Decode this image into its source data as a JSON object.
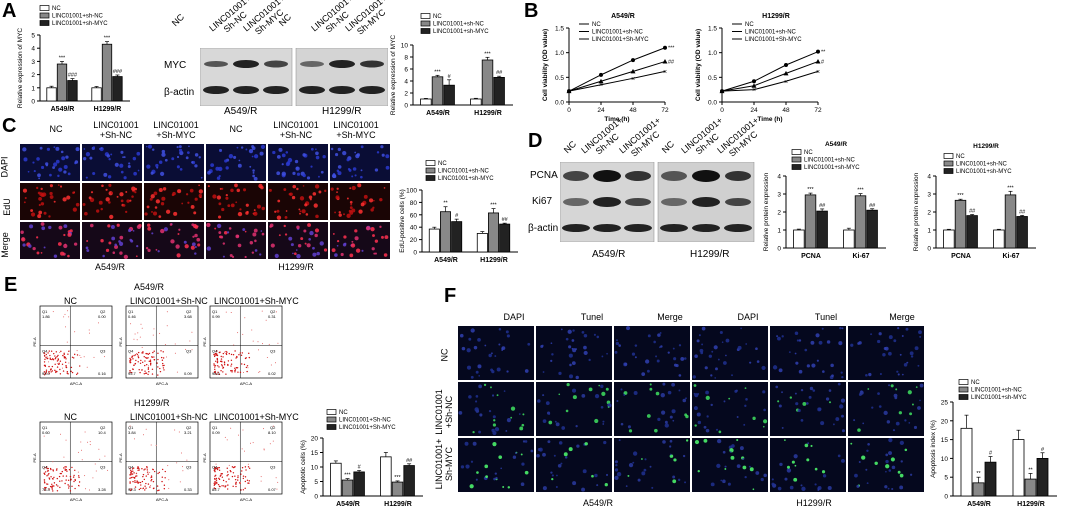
{
  "panels": {
    "A": "A",
    "B": "B",
    "C": "C",
    "D": "D",
    "E": "E",
    "F": "F"
  },
  "legend": {
    "nc": "NC",
    "sh_nc_lower": "LINC01001+sh-NC",
    "sh_myc_upper": "LINC01001+sh-MYC",
    "sh_nc_cap": "LINC01001+Sh-NC",
    "sh_myc_cap": "LINC01001+Sh-MYC",
    "sh_myc_lower": "LINC01001+sh-MYC"
  },
  "cells": {
    "a549": "A549/R",
    "h1299": "H1299/R"
  },
  "panelA": {
    "mrna_ylabel": "Relative expression of MYC",
    "prot_ylabel": "Relative expression of MYC",
    "blot_labels": {
      "myc": "MYC",
      "actin": "β-actin"
    },
    "lane_labels": [
      "NC",
      "LINC01001+ Sh-NC",
      "LINC01001+ Sh-MYC",
      "NC",
      "LINC01001+ Sh-NC",
      "LINC01001+ Sh-MYC"
    ]
  },
  "panelB": {
    "ylabel": "Cell viability (OD value)",
    "xlabel": "Time (h)"
  },
  "panelC": {
    "rows": [
      "DAPI",
      "EdU",
      "Merge"
    ],
    "cols": [
      "NC",
      "LINC01001 +Sh-NC",
      "LINC01001 +Sh-MYC",
      "NC",
      "LINC01001 +Sh-NC",
      "LINC01001 +Sh-MYC"
    ],
    "ylabel": "EdU-positive cells (%)"
  },
  "panelD": {
    "blot_labels": [
      "PCNA",
      "Ki67",
      "β-actin"
    ],
    "lane_labels": [
      "NC",
      "LINC01001+ Sh-NC",
      "LINC01001+ Sh-MYC",
      "NC",
      "LINC01001+ Sh-NC",
      "LINC01001+ Sh-MYC"
    ],
    "ylabel": "Relative protein expression"
  },
  "panelE": {
    "cols": [
      "NC",
      "LINC01001+Sh-NC",
      "LINC01001+Sh-MYC"
    ],
    "ylabel": "Apoptotic cells (%)",
    "flow": [
      {
        "q1": "1.86",
        "q2": "0.00",
        "q4": "93.0",
        "q3": "0.16"
      },
      {
        "q1": "0.46",
        "q2": "3.68",
        "q4": "95.7",
        "q3": "0.09"
      },
      {
        "q1": "0.99",
        "q2": "0.31",
        "q4": "98.6",
        "q3": "0.02"
      },
      {
        "q1": "0.60",
        "q2": "10.4",
        "q4": "78.3",
        "q3": "3.28"
      },
      {
        "q1": "3.84",
        "q2": "3.21",
        "q4": "91.3",
        "q3": "0.33"
      },
      {
        "q1": "0.09",
        "q2": "8.10",
        "q4": "85.7",
        "q3": "0.07"
      }
    ],
    "flow_axes": {
      "x": "APC-A",
      "y": "PE-A"
    }
  },
  "panelF": {
    "cols": [
      "DAPI",
      "Tunel",
      "Merge",
      "DAPI",
      "Tunel",
      "Merge"
    ],
    "rows": [
      "NC",
      "LINC01001 +Sh-NC",
      "LINC01001+ Sh-MYC"
    ],
    "ylabel": "Apoptosis index (%)"
  },
  "colors": {
    "nc": "#ffffff",
    "sh_nc": "#888888",
    "sh_myc": "#222222",
    "dapi": "#1a2a8a",
    "edu": "#c21a1a",
    "tunel": "#0e2a0e"
  },
  "chart_data": [
    {
      "id": "A-mrna",
      "type": "bar",
      "ylabel": "Relative expression of MYC",
      "categories": [
        "A549/R",
        "H1299/R"
      ],
      "ylim": [
        0,
        5
      ],
      "yticks": [
        "0",
        "1",
        "2",
        "3",
        "4",
        "5"
      ],
      "series": [
        {
          "name": "NC",
          "values": [
            1.0,
            1.0
          ],
          "err": [
            0.12,
            0.1
          ],
          "sig": [
            "",
            ""
          ]
        },
        {
          "name": "LINC01001+sh-NC",
          "values": [
            2.8,
            4.3
          ],
          "err": [
            0.2,
            0.2
          ],
          "sig": [
            "***",
            "***"
          ]
        },
        {
          "name": "LINC01001+sh-MYC",
          "values": [
            1.55,
            1.85
          ],
          "err": [
            0.15,
            0.12
          ],
          "sig": [
            "###",
            "###"
          ]
        }
      ]
    },
    {
      "id": "A-prot",
      "type": "bar",
      "ylabel": "Relative expression of MYC",
      "categories": [
        "A549/R",
        "H1299/R"
      ],
      "ylim": [
        0,
        10
      ],
      "yticks": [
        "0",
        "2",
        "4",
        "6",
        "8",
        "10"
      ],
      "series": [
        {
          "name": "NC",
          "values": [
            1.0,
            1.0
          ],
          "err": [
            0.1,
            0.12
          ],
          "sig": [
            "",
            ""
          ]
        },
        {
          "name": "LINC01001+sh-NC",
          "values": [
            4.7,
            7.5
          ],
          "err": [
            0.25,
            0.45
          ],
          "sig": [
            "***",
            "***"
          ]
        },
        {
          "name": "LINC01001+sh-MYC",
          "values": [
            3.3,
            4.6
          ],
          "err": [
            0.9,
            0.2
          ],
          "sig": [
            "#",
            "##"
          ]
        }
      ]
    },
    {
      "id": "B-a549",
      "type": "line",
      "title": "A549/R",
      "ylabel": "Cell viability (OD value)",
      "xlabel": "Time (h)",
      "x": [
        0,
        24,
        48,
        72
      ],
      "ylim": [
        0,
        1.5
      ],
      "xticks": [
        "0",
        "24",
        "48",
        "72"
      ],
      "yticks": [
        "0.0",
        "0.5",
        "1.0",
        "1.5"
      ],
      "series": [
        {
          "name": "NC",
          "values": [
            0.22,
            0.35,
            0.48,
            0.62
          ],
          "sig": ""
        },
        {
          "name": "LINC01001+sh-NC",
          "values": [
            0.22,
            0.55,
            0.85,
            1.1
          ],
          "sig": "***"
        },
        {
          "name": "LINC01001+Sh-MYC",
          "values": [
            0.22,
            0.42,
            0.62,
            0.82
          ],
          "sig": "##"
        }
      ]
    },
    {
      "id": "B-h1299",
      "type": "line",
      "title": "H1299/R",
      "ylabel": "Cell viability (OD value)",
      "xlabel": "Time (h)",
      "x": [
        0,
        24,
        48,
        72
      ],
      "ylim": [
        0,
        1.5
      ],
      "xticks": [
        "0",
        "24",
        "48",
        "72"
      ],
      "yticks": [
        "0.0",
        "0.5",
        "1.0",
        "1.5"
      ],
      "series": [
        {
          "name": "NC",
          "values": [
            0.22,
            0.25,
            0.42,
            0.62
          ],
          "sig": ""
        },
        {
          "name": "LINC01001+sh-NC",
          "values": [
            0.22,
            0.42,
            0.75,
            1.02
          ],
          "sig": "**"
        },
        {
          "name": "LINC01001+Sh-MYC",
          "values": [
            0.22,
            0.33,
            0.58,
            0.82
          ],
          "sig": "#"
        }
      ]
    },
    {
      "id": "C",
      "type": "bar",
      "ylabel": "EdU-positive cells (%)",
      "categories": [
        "A549/R",
        "H1299/R"
      ],
      "ylim": [
        0,
        100
      ],
      "yticks": [
        "0",
        "20",
        "40",
        "60",
        "80",
        "100"
      ],
      "series": [
        {
          "name": "NC",
          "values": [
            37,
            30
          ],
          "err": [
            3,
            3
          ],
          "sig": [
            "",
            ""
          ]
        },
        {
          "name": "LINC01001+sh-NC",
          "values": [
            65,
            63
          ],
          "err": [
            8,
            7
          ],
          "sig": [
            "**",
            "***"
          ]
        },
        {
          "name": "LINC01001+sh-MYC",
          "values": [
            49,
            45
          ],
          "err": [
            4,
            1.5
          ],
          "sig": [
            "#",
            "##"
          ]
        }
      ]
    },
    {
      "id": "D-a549",
      "type": "bar",
      "title": "A549/R",
      "ylabel": "Relative protein expression",
      "categories": [
        "PCNA",
        "Ki-67"
      ],
      "ylim": [
        0,
        4
      ],
      "yticks": [
        "0",
        "1",
        "2",
        "3",
        "4"
      ],
      "series": [
        {
          "name": "NC",
          "values": [
            1.0,
            1.0
          ],
          "err": [
            0.05,
            0.1
          ],
          "sig": [
            "",
            ""
          ]
        },
        {
          "name": "LINC01001+sh-NC",
          "values": [
            2.95,
            2.9
          ],
          "err": [
            0.1,
            0.12
          ],
          "sig": [
            "***",
            "***"
          ]
        },
        {
          "name": "LINC01001+sh-MYC",
          "values": [
            2.05,
            2.1
          ],
          "err": [
            0.12,
            0.08
          ],
          "sig": [
            "##",
            "##"
          ]
        }
      ]
    },
    {
      "id": "D-h1299",
      "type": "bar",
      "title": "H1299/R",
      "ylabel": "Relative protein expression",
      "categories": [
        "PCNA",
        "Ki-67"
      ],
      "ylim": [
        0,
        4
      ],
      "yticks": [
        "0",
        "1",
        "2",
        "3",
        "4"
      ],
      "series": [
        {
          "name": "NC",
          "values": [
            1.0,
            1.0
          ],
          "err": [
            0.04,
            0.04
          ],
          "sig": [
            "",
            ""
          ]
        },
        {
          "name": "LINC01001+sh-NC",
          "values": [
            2.65,
            2.95
          ],
          "err": [
            0.06,
            0.2
          ],
          "sig": [
            "***",
            "***"
          ]
        },
        {
          "name": "LINC01001+sh-MYC",
          "values": [
            1.8,
            1.75
          ],
          "err": [
            0.06,
            0.06
          ],
          "sig": [
            "##",
            "##"
          ]
        }
      ]
    },
    {
      "id": "E",
      "type": "bar",
      "ylabel": "Apoptotic cells (%)",
      "categories": [
        "A549/R",
        "H1299/R"
      ],
      "ylim": [
        0,
        20
      ],
      "yticks": [
        "0",
        "5",
        "10",
        "15",
        "20"
      ],
      "series": [
        {
          "name": "NC",
          "values": [
            11.3,
            13.5
          ],
          "err": [
            0.8,
            1.5
          ],
          "sig": [
            "",
            ""
          ]
        },
        {
          "name": "LINC01001+Sh-NC",
          "values": [
            5.5,
            4.8
          ],
          "err": [
            0.5,
            0.4
          ],
          "sig": [
            "***",
            "***"
          ]
        },
        {
          "name": "LINC01001+Sh-MYC",
          "values": [
            8.3,
            10.5
          ],
          "err": [
            0.5,
            0.6
          ],
          "sig": [
            "#",
            "##"
          ]
        }
      ]
    },
    {
      "id": "F",
      "type": "bar",
      "ylabel": "Apoptosis index (%)",
      "categories": [
        "A549/R",
        "H1299/R"
      ],
      "ylim": [
        0,
        25
      ],
      "yticks": [
        "0",
        "5",
        "10",
        "15",
        "20",
        "25"
      ],
      "series": [
        {
          "name": "NC",
          "values": [
            18,
            15
          ],
          "err": [
            3.5,
            2.5
          ],
          "sig": [
            "",
            ""
          ]
        },
        {
          "name": "LINC01001+sh-NC",
          "values": [
            3.5,
            4.5
          ],
          "err": [
            1.5,
            1.5
          ],
          "sig": [
            "**",
            "**"
          ]
        },
        {
          "name": "LINC01001+sh-MYC",
          "values": [
            9,
            10
          ],
          "err": [
            1.5,
            1.5
          ],
          "sig": [
            "#",
            "#"
          ]
        }
      ]
    }
  ]
}
